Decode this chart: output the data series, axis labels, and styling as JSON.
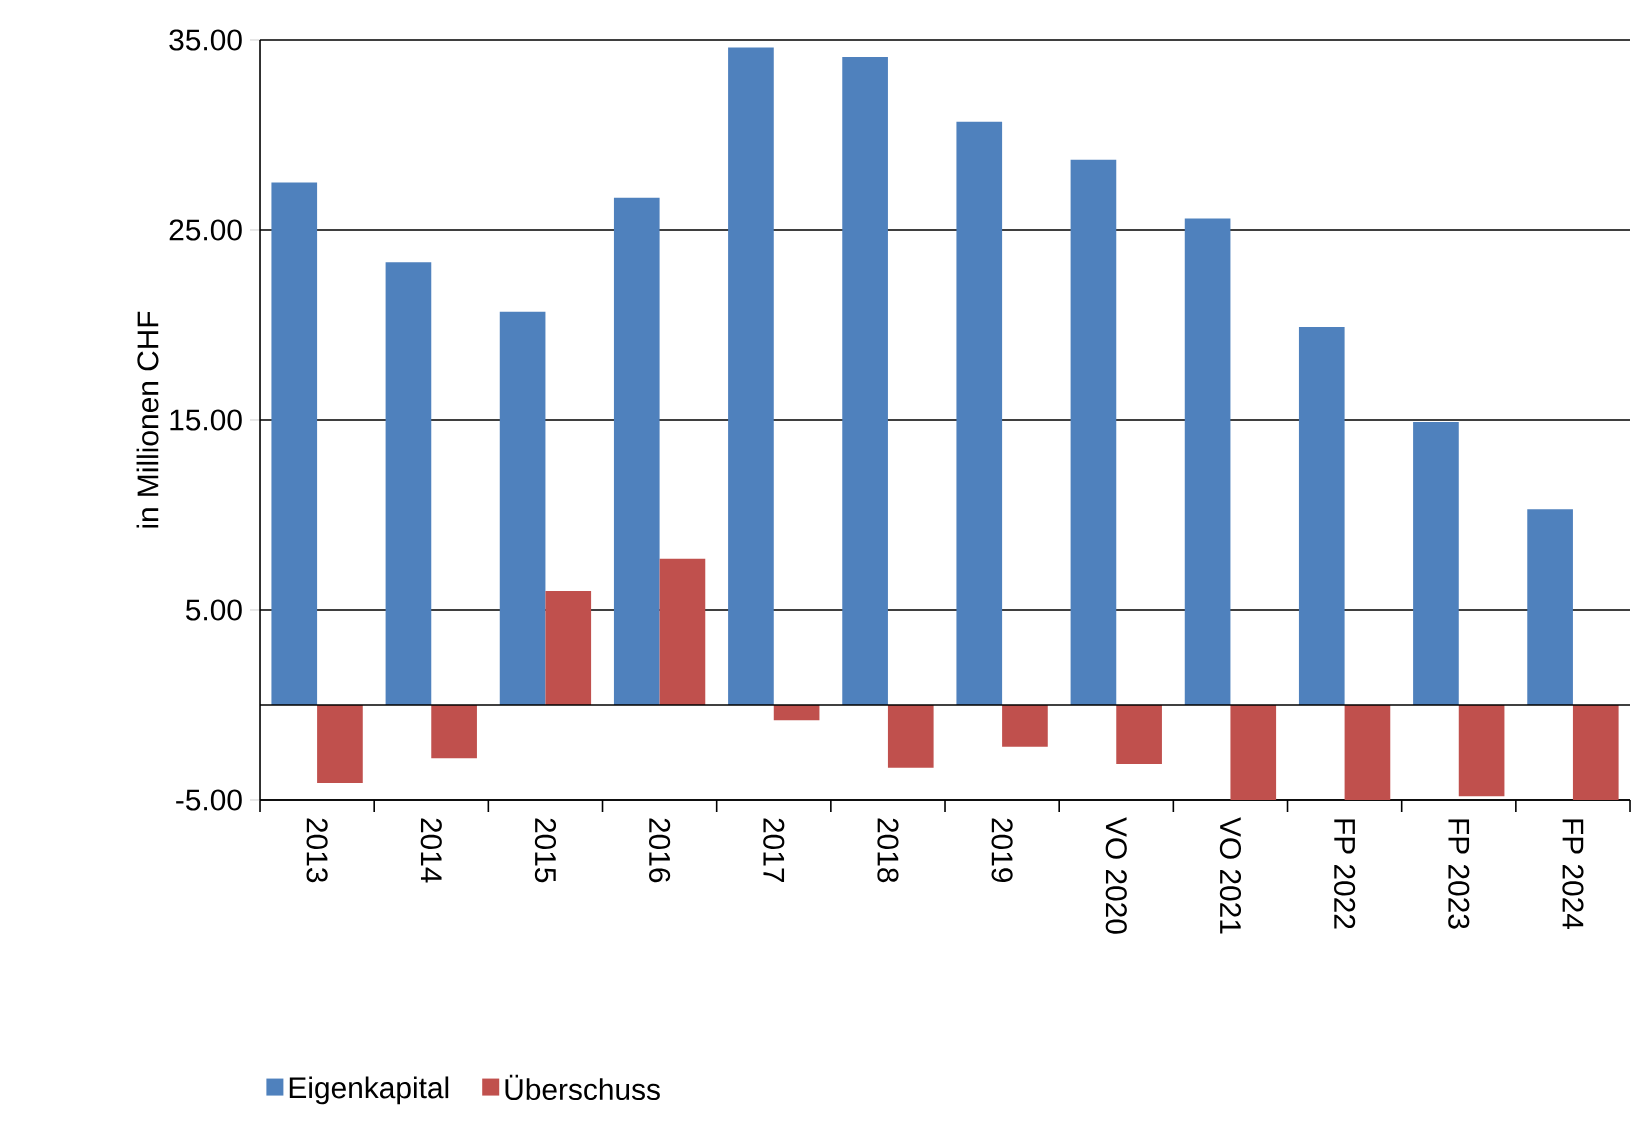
{
  "chart_data": {
    "type": "bar",
    "ylabel": "in Millionen CHF",
    "categories": [
      "2013",
      "2014",
      "2015",
      "2016",
      "2017",
      "2018",
      "2019",
      "VO 2020",
      "VO 2021",
      "FP 2022",
      "FP 2023",
      "FP 2024"
    ],
    "series": [
      {
        "name": "Eigenkapital",
        "color": "#4f81bd",
        "values": [
          27.5,
          23.3,
          20.7,
          26.7,
          34.6,
          34.1,
          30.7,
          28.7,
          25.6,
          19.9,
          14.9,
          10.3
        ]
      },
      {
        "name": "Überschuss",
        "color": "#c0504d",
        "values": [
          -4.1,
          -2.8,
          6.0,
          7.7,
          -0.8,
          -3.3,
          -2.2,
          -3.1,
          -5.0,
          -5.0,
          -4.8,
          -5.0
        ]
      }
    ],
    "ylim": [
      -5,
      35
    ],
    "yticks": [
      {
        "value": -5,
        "label": "-5.00"
      },
      {
        "value": 5,
        "label": "5.00"
      },
      {
        "value": 15,
        "label": "15.00"
      },
      {
        "value": 25,
        "label": "25.00"
      },
      {
        "value": 35,
        "label": "35.00"
      }
    ],
    "grid": "y",
    "legend": "bottom"
  }
}
